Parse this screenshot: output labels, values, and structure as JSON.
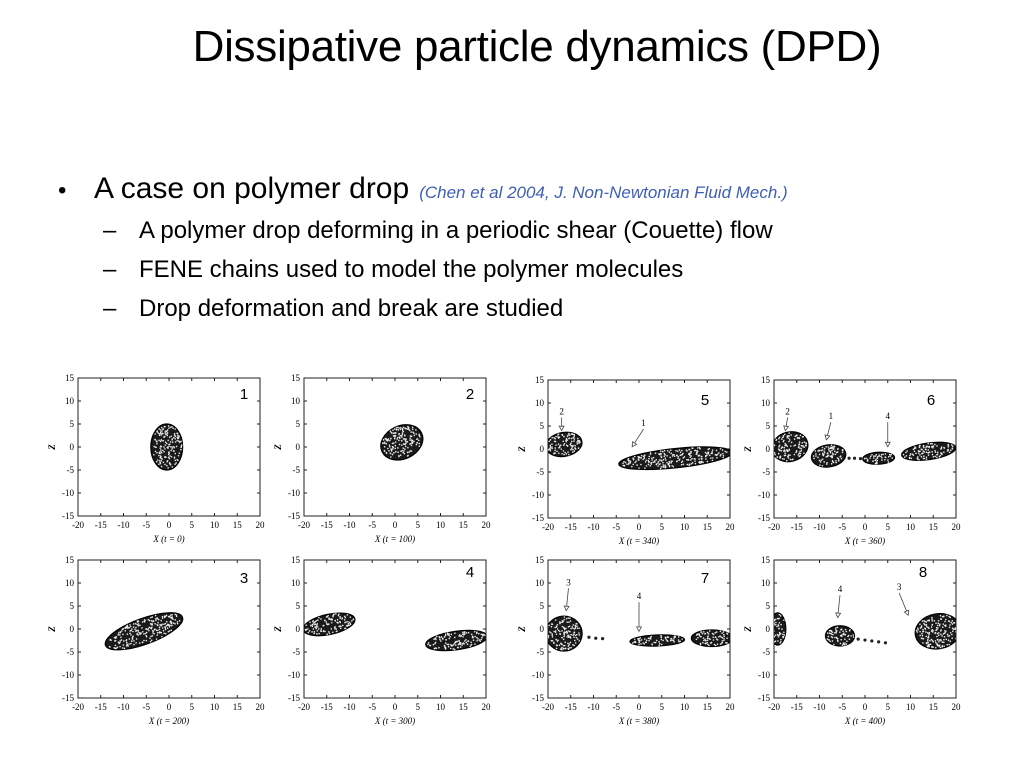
{
  "slide": {
    "title": "Dissipative particle dynamics (DPD)",
    "bullet": {
      "text": "A case on polymer drop",
      "citation": "(Chen et al 2004, J. Non-Newtonian Fluid Mech.)"
    },
    "subbullets": [
      "A polymer drop deforming in a periodic shear (Couette) flow",
      "FENE chains used to model the polymer molecules",
      "Drop deformation and break are studied"
    ]
  },
  "colors": {
    "citation": "#3f5fb5",
    "text": "#000000",
    "particles": "#1a1a1a"
  },
  "figure": {
    "y_axis_label": "Z",
    "x_axis_prefix": "X (t = ",
    "x_axis_suffix": ")",
    "x_ticks": [
      "-20",
      "-15",
      "-10",
      "-5",
      "0",
      "5",
      "10",
      "15",
      "20"
    ],
    "y_ticks": [
      "15",
      "10",
      "5",
      "0",
      "-5",
      "-10",
      "-15"
    ],
    "x_range": [
      -20,
      20
    ],
    "z_range": [
      -15,
      15
    ],
    "panels": [
      {
        "number": "1",
        "time": "0",
        "blobs": [
          {
            "cx": -0.5,
            "cz": 0,
            "rx": 3.5,
            "rz": 5,
            "rot": 0
          }
        ],
        "arrows": []
      },
      {
        "number": "2",
        "time": "100",
        "blobs": [
          {
            "cx": 1.5,
            "cz": 1,
            "rx": 4.8,
            "rz": 3.6,
            "rot": -25
          }
        ],
        "arrows": []
      },
      {
        "number": "3",
        "time": "200",
        "blobs": [
          {
            "cx": -5.5,
            "cz": -0.5,
            "rx": 9,
            "rz": 2.8,
            "rot": -20
          }
        ],
        "arrows": []
      },
      {
        "number": "4",
        "time": "300",
        "blobs": [
          {
            "cx": -14.5,
            "cz": 1,
            "rx": 5.8,
            "rz": 2.2,
            "rot": -12
          },
          {
            "cx": 13.5,
            "cz": -2.5,
            "rx": 6.8,
            "rz": 2,
            "rot": -8
          }
        ],
        "arrows": []
      },
      {
        "number": "5",
        "time": "340",
        "blobs": [
          {
            "cx": -16.5,
            "cz": 1,
            "rx": 4,
            "rz": 2.6,
            "rot": -10
          },
          {
            "cx": 8,
            "cz": -2,
            "rx": 12.5,
            "rz": 2.1,
            "rot": -6
          }
        ],
        "arrows": [
          {
            "label": "2",
            "x": -17,
            "z": 7.5,
            "tx": -17,
            "tz": 4
          },
          {
            "label": "1",
            "x": 1,
            "z": 5,
            "tx": -1.5,
            "tz": 0.5
          }
        ]
      },
      {
        "number": "6",
        "time": "360",
        "blobs": [
          {
            "cx": -16.5,
            "cz": 0.5,
            "rx": 4,
            "rz": 3.2,
            "rot": -15
          },
          {
            "cx": -8,
            "cz": -1.5,
            "rx": 3.8,
            "rz": 2.4,
            "rot": -8
          },
          {
            "cx": 3,
            "cz": -2,
            "rx": 3.5,
            "rz": 1.3,
            "rot": -3
          },
          {
            "cx": 14,
            "cz": -0.5,
            "rx": 6,
            "rz": 1.8,
            "rot": -8
          }
        ],
        "arrows": [
          {
            "label": "2",
            "x": -17,
            "z": 7.5,
            "tx": -17.5,
            "tz": 4
          },
          {
            "label": "1",
            "x": -7.5,
            "z": 6.5,
            "tx": -8.5,
            "tz": 2
          },
          {
            "label": "4",
            "x": 5,
            "z": 6.5,
            "tx": 5,
            "tz": 0.5
          }
        ],
        "dots": [
          {
            "x": -3.5,
            "z": -2
          },
          {
            "x": -2.3,
            "z": -2
          },
          {
            "x": -1,
            "z": -2.1
          }
        ]
      },
      {
        "number": "7",
        "time": "380",
        "blobs": [
          {
            "cx": -16.5,
            "cz": -1,
            "rx": 4,
            "rz": 3.8,
            "rot": 0
          },
          {
            "cx": 4,
            "cz": -2.5,
            "rx": 6,
            "rz": 1.2,
            "rot": -2
          },
          {
            "cx": 16,
            "cz": -2,
            "rx": 4.5,
            "rz": 1.8,
            "rot": 0
          }
        ],
        "arrows": [
          {
            "label": "3",
            "x": -15.5,
            "z": 9.5,
            "tx": -16,
            "tz": 4
          },
          {
            "label": "4",
            "x": 0,
            "z": 6.5,
            "tx": 0,
            "tz": -0.5
          }
        ],
        "dots": [
          {
            "x": -11,
            "z": -1.8
          },
          {
            "x": -9.5,
            "z": -2
          },
          {
            "x": -8,
            "z": -2.1
          }
        ]
      },
      {
        "number": "8",
        "time": "400",
        "blobs": [
          {
            "cx": -19.2,
            "cz": 0,
            "rx": 1.8,
            "rz": 3.5,
            "rot": 0
          },
          {
            "cx": -5.5,
            "cz": -1.5,
            "rx": 3.2,
            "rz": 2.2,
            "rot": 0
          },
          {
            "cx": 16,
            "cz": -0.5,
            "rx": 5,
            "rz": 3.8,
            "rot": -10
          }
        ],
        "arrows": [
          {
            "label": "4",
            "x": -5.5,
            "z": 8,
            "tx": -6,
            "tz": 2.5
          },
          {
            "label": "3",
            "x": 7.5,
            "z": 8.5,
            "tx": 9.5,
            "tz": 3
          }
        ],
        "dots": [
          {
            "x": -1.5,
            "z": -2.2
          },
          {
            "x": 0,
            "z": -2.4
          },
          {
            "x": 1.5,
            "z": -2.6
          },
          {
            "x": 3,
            "z": -2.8
          },
          {
            "x": 4.5,
            "z": -3
          }
        ]
      }
    ]
  }
}
